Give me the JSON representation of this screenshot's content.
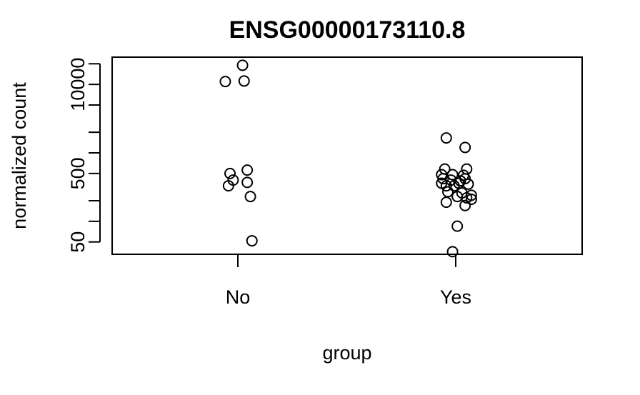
{
  "chart_data": {
    "type": "scatter",
    "title": "ENSG00000173110.8",
    "xlabel": "group",
    "ylabel": "normalized count",
    "categories": [
      "No",
      "Yes"
    ],
    "y_scale": "log",
    "ylim": [
      33,
      25000
    ],
    "y_ticks": [
      50,
      100,
      200,
      500,
      1000,
      2000,
      5000,
      10000,
      20000
    ],
    "y_tick_labels": {
      "50": "50",
      "500": "500",
      "10000": "10000"
    },
    "grid": false,
    "legend": "none",
    "series": [
      {
        "category": "No",
        "points": [
          {
            "jitter": 0.015,
            "y": 19000
          },
          {
            "jitter": -0.04,
            "y": 11000
          },
          {
            "jitter": 0.02,
            "y": 11200
          },
          {
            "jitter": 0.03,
            "y": 560
          },
          {
            "jitter": -0.025,
            "y": 500
          },
          {
            "jitter": -0.015,
            "y": 400
          },
          {
            "jitter": 0.03,
            "y": 370
          },
          {
            "jitter": -0.03,
            "y": 330
          },
          {
            "jitter": 0.04,
            "y": 230
          },
          {
            "jitter": 0.045,
            "y": 52
          }
        ]
      },
      {
        "category": "Yes",
        "points": [
          {
            "jitter": -0.03,
            "y": 1650
          },
          {
            "jitter": 0.03,
            "y": 1200
          },
          {
            "jitter": -0.035,
            "y": 580
          },
          {
            "jitter": 0.035,
            "y": 580
          },
          {
            "jitter": -0.045,
            "y": 480
          },
          {
            "jitter": -0.01,
            "y": 480
          },
          {
            "jitter": 0.025,
            "y": 470
          },
          {
            "jitter": -0.04,
            "y": 420
          },
          {
            "jitter": 0.03,
            "y": 420
          },
          {
            "jitter": -0.015,
            "y": 400
          },
          {
            "jitter": 0.015,
            "y": 390
          },
          {
            "jitter": -0.045,
            "y": 360
          },
          {
            "jitter": 0.01,
            "y": 360
          },
          {
            "jitter": 0.04,
            "y": 350
          },
          {
            "jitter": -0.03,
            "y": 330
          },
          {
            "jitter": -0.005,
            "y": 330
          },
          {
            "jitter": -0.025,
            "y": 270
          },
          {
            "jitter": 0.02,
            "y": 260
          },
          {
            "jitter": 0.05,
            "y": 240
          },
          {
            "jitter": 0.005,
            "y": 230
          },
          {
            "jitter": 0.035,
            "y": 220
          },
          {
            "jitter": 0.05,
            "y": 210
          },
          {
            "jitter": -0.03,
            "y": 190
          },
          {
            "jitter": 0.03,
            "y": 170
          },
          {
            "jitter": 0.005,
            "y": 85
          },
          {
            "jitter": -0.01,
            "y": 36
          }
        ]
      }
    ]
  }
}
